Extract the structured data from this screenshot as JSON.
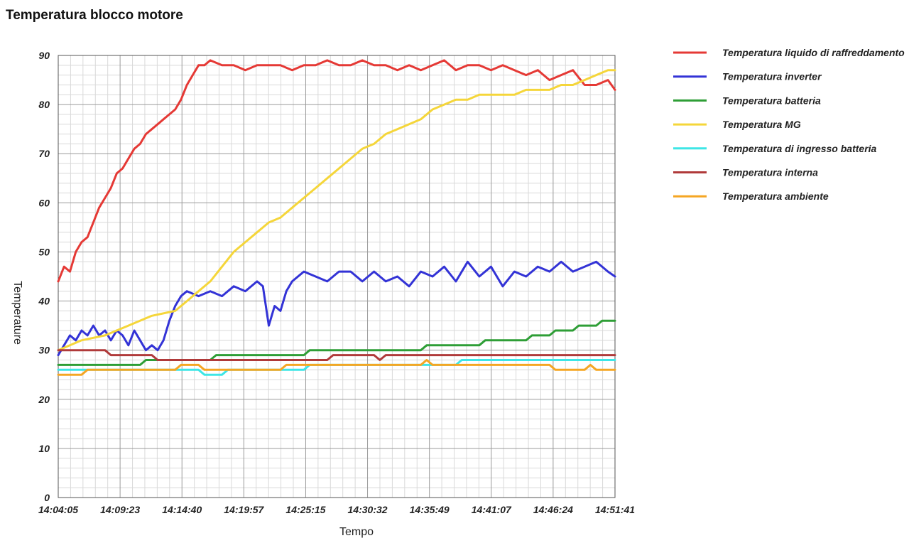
{
  "page": {
    "title": "Temperatura blocco motore"
  },
  "chart_data": {
    "type": "line",
    "title": "Temperatura blocco motore",
    "xlabel": "Tempo",
    "ylabel": "Temperature",
    "ylim": [
      0,
      90
    ],
    "yticks": [
      0,
      10,
      20,
      30,
      40,
      50,
      60,
      70,
      80,
      90
    ],
    "x_ticks": [
      "14:04:05",
      "14:09:23",
      "14:14:40",
      "14:19:57",
      "14:25:15",
      "14:30:32",
      "14:35:49",
      "14:41:07",
      "14:46:24",
      "14:51:41"
    ],
    "x_unit": "minutes since first tick label (14:04:05)",
    "xlim": [
      0,
      47.6
    ],
    "grid": true,
    "legend_position": "right",
    "series": [
      {
        "name": "Temperatura liquido di raffreddamento",
        "color": "#e53935",
        "points": [
          [
            0,
            44
          ],
          [
            0.5,
            47
          ],
          [
            1,
            46
          ],
          [
            1.5,
            50
          ],
          [
            2,
            52
          ],
          [
            2.5,
            53
          ],
          [
            3,
            56
          ],
          [
            3.5,
            59
          ],
          [
            4,
            61
          ],
          [
            4.5,
            63
          ],
          [
            5,
            66
          ],
          [
            5.5,
            67
          ],
          [
            6,
            69
          ],
          [
            6.5,
            71
          ],
          [
            7,
            72
          ],
          [
            7.5,
            74
          ],
          [
            8,
            75
          ],
          [
            8.5,
            76
          ],
          [
            9,
            77
          ],
          [
            9.5,
            78
          ],
          [
            10,
            79
          ],
          [
            10.5,
            81
          ],
          [
            11,
            84
          ],
          [
            11.5,
            86
          ],
          [
            12,
            88
          ],
          [
            12.5,
            88
          ],
          [
            13,
            89
          ],
          [
            14,
            88
          ],
          [
            15,
            88
          ],
          [
            16,
            87
          ],
          [
            17,
            88
          ],
          [
            18,
            88
          ],
          [
            19,
            88
          ],
          [
            20,
            87
          ],
          [
            21,
            88
          ],
          [
            22,
            88
          ],
          [
            23,
            89
          ],
          [
            24,
            88
          ],
          [
            25,
            88
          ],
          [
            26,
            89
          ],
          [
            27,
            88
          ],
          [
            28,
            88
          ],
          [
            29,
            87
          ],
          [
            30,
            88
          ],
          [
            31,
            87
          ],
          [
            32,
            88
          ],
          [
            33,
            89
          ],
          [
            34,
            87
          ],
          [
            35,
            88
          ],
          [
            36,
            88
          ],
          [
            37,
            87
          ],
          [
            38,
            88
          ],
          [
            39,
            87
          ],
          [
            40,
            86
          ],
          [
            41,
            87
          ],
          [
            42,
            85
          ],
          [
            43,
            86
          ],
          [
            44,
            87
          ],
          [
            45,
            84
          ],
          [
            46,
            84
          ],
          [
            47,
            85
          ],
          [
            47.6,
            83
          ]
        ]
      },
      {
        "name": "Temperatura inverter",
        "color": "#3333d6",
        "points": [
          [
            0,
            29
          ],
          [
            0.5,
            31
          ],
          [
            1,
            33
          ],
          [
            1.5,
            32
          ],
          [
            2,
            34
          ],
          [
            2.5,
            33
          ],
          [
            3,
            35
          ],
          [
            3.5,
            33
          ],
          [
            4,
            34
          ],
          [
            4.5,
            32
          ],
          [
            5,
            34
          ],
          [
            5.5,
            33
          ],
          [
            6,
            31
          ],
          [
            6.5,
            34
          ],
          [
            7,
            32
          ],
          [
            7.5,
            30
          ],
          [
            8,
            31
          ],
          [
            8.5,
            30
          ],
          [
            9,
            32
          ],
          [
            9.5,
            36
          ],
          [
            10,
            39
          ],
          [
            10.5,
            41
          ],
          [
            11,
            42
          ],
          [
            12,
            41
          ],
          [
            13,
            42
          ],
          [
            14,
            41
          ],
          [
            15,
            43
          ],
          [
            16,
            42
          ],
          [
            17,
            44
          ],
          [
            17.5,
            43
          ],
          [
            18,
            35
          ],
          [
            18.5,
            39
          ],
          [
            19,
            38
          ],
          [
            19.5,
            42
          ],
          [
            20,
            44
          ],
          [
            21,
            46
          ],
          [
            22,
            45
          ],
          [
            23,
            44
          ],
          [
            24,
            46
          ],
          [
            25,
            46
          ],
          [
            26,
            44
          ],
          [
            27,
            46
          ],
          [
            28,
            44
          ],
          [
            29,
            45
          ],
          [
            30,
            43
          ],
          [
            31,
            46
          ],
          [
            32,
            45
          ],
          [
            33,
            47
          ],
          [
            34,
            44
          ],
          [
            35,
            48
          ],
          [
            36,
            45
          ],
          [
            37,
            47
          ],
          [
            38,
            43
          ],
          [
            39,
            46
          ],
          [
            40,
            45
          ],
          [
            41,
            47
          ],
          [
            42,
            46
          ],
          [
            43,
            48
          ],
          [
            44,
            46
          ],
          [
            45,
            47
          ],
          [
            46,
            48
          ],
          [
            47,
            46
          ],
          [
            47.6,
            45
          ]
        ]
      },
      {
        "name": "Temperatura batteria",
        "color": "#2e9e36",
        "points": [
          [
            0,
            27
          ],
          [
            7,
            27
          ],
          [
            7.5,
            28
          ],
          [
            13,
            28
          ],
          [
            13.5,
            29
          ],
          [
            21,
            29
          ],
          [
            21.5,
            30
          ],
          [
            28,
            30
          ],
          [
            28.5,
            30
          ],
          [
            31,
            30
          ],
          [
            31.5,
            31
          ],
          [
            36,
            31
          ],
          [
            36.5,
            32
          ],
          [
            40,
            32
          ],
          [
            40.5,
            33
          ],
          [
            42,
            33
          ],
          [
            42.5,
            34
          ],
          [
            44,
            34
          ],
          [
            44.5,
            35
          ],
          [
            46,
            35
          ],
          [
            46.5,
            36
          ],
          [
            47.6,
            36
          ]
        ]
      },
      {
        "name": "Temperatura MG",
        "color": "#f5d63a",
        "points": [
          [
            0,
            30
          ],
          [
            2,
            32
          ],
          [
            4,
            33
          ],
          [
            6,
            35
          ],
          [
            8,
            37
          ],
          [
            10,
            38
          ],
          [
            11,
            40
          ],
          [
            12,
            42
          ],
          [
            13,
            44
          ],
          [
            14,
            47
          ],
          [
            15,
            50
          ],
          [
            16,
            52
          ],
          [
            17,
            54
          ],
          [
            18,
            56
          ],
          [
            19,
            57
          ],
          [
            20,
            59
          ],
          [
            21,
            61
          ],
          [
            22,
            63
          ],
          [
            23,
            65
          ],
          [
            24,
            67
          ],
          [
            25,
            69
          ],
          [
            26,
            71
          ],
          [
            27,
            72
          ],
          [
            28,
            74
          ],
          [
            29,
            75
          ],
          [
            30,
            76
          ],
          [
            31,
            77
          ],
          [
            32,
            79
          ],
          [
            33,
            80
          ],
          [
            34,
            81
          ],
          [
            35,
            81
          ],
          [
            36,
            82
          ],
          [
            37,
            82
          ],
          [
            38,
            82
          ],
          [
            39,
            82
          ],
          [
            40,
            83
          ],
          [
            41,
            83
          ],
          [
            42,
            83
          ],
          [
            43,
            84
          ],
          [
            44,
            84
          ],
          [
            45,
            85
          ],
          [
            46,
            86
          ],
          [
            47,
            87
          ],
          [
            47.6,
            87
          ]
        ]
      },
      {
        "name": "Temperatura di ingresso batteria",
        "color": "#3ee6e6",
        "points": [
          [
            0,
            26
          ],
          [
            10,
            26
          ],
          [
            10.5,
            26
          ],
          [
            12,
            26
          ],
          [
            12.5,
            25
          ],
          [
            14,
            25
          ],
          [
            14.5,
            26
          ],
          [
            21,
            26
          ],
          [
            21.5,
            27
          ],
          [
            34,
            27
          ],
          [
            34.5,
            28
          ],
          [
            47.6,
            28
          ]
        ]
      },
      {
        "name": "Temperatura interna",
        "color": "#b03a3a",
        "points": [
          [
            0,
            30
          ],
          [
            4,
            30
          ],
          [
            4.5,
            29
          ],
          [
            8,
            29
          ],
          [
            8.5,
            28
          ],
          [
            14,
            28
          ],
          [
            14.5,
            28
          ],
          [
            23,
            28
          ],
          [
            23.5,
            29
          ],
          [
            27,
            29
          ],
          [
            27.5,
            28
          ],
          [
            28,
            29
          ],
          [
            47.6,
            29
          ]
        ]
      },
      {
        "name": "Temperatura ambiente",
        "color": "#f5a623",
        "points": [
          [
            0,
            25
          ],
          [
            2,
            25
          ],
          [
            2.5,
            26
          ],
          [
            10,
            26
          ],
          [
            10.5,
            27
          ],
          [
            12,
            27
          ],
          [
            12.5,
            26
          ],
          [
            19,
            26
          ],
          [
            19.5,
            27
          ],
          [
            31,
            27
          ],
          [
            31.5,
            28
          ],
          [
            32,
            27
          ],
          [
            42,
            27
          ],
          [
            42.5,
            26
          ],
          [
            45,
            26
          ],
          [
            45.5,
            27
          ],
          [
            46,
            26
          ],
          [
            47.6,
            26
          ]
        ]
      }
    ]
  }
}
